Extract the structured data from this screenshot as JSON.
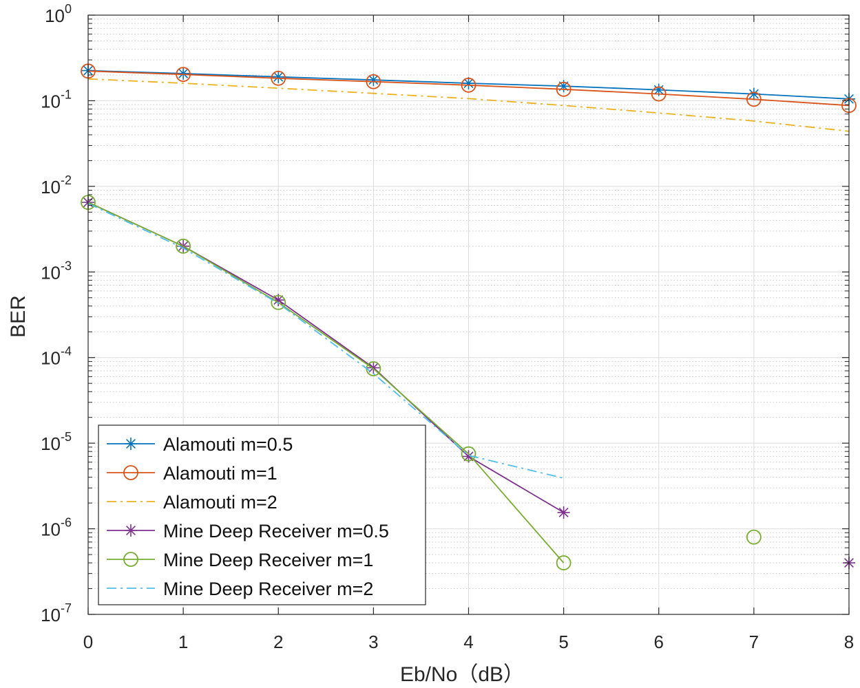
{
  "chart_data": {
    "type": "line",
    "xlabel": "Eb/No（dB）",
    "ylabel": "BER",
    "xlim": [
      0,
      8
    ],
    "ylim": [
      1e-07,
      1
    ],
    "yscale": "log",
    "grid": true,
    "legend_position": "bottom-left",
    "x_ticks": [
      0,
      1,
      2,
      3,
      4,
      5,
      6,
      7,
      8
    ],
    "y_tick_exponents": [
      0,
      -1,
      -2,
      -3,
      -4,
      -5,
      -6,
      -7
    ],
    "series": [
      {
        "name": "Alamouti m=0.5",
        "color": "#0072bd",
        "linestyle": "solid",
        "marker": "asterisk",
        "x": [
          0,
          1,
          2,
          3,
          4,
          5,
          6,
          7,
          8
        ],
        "y": [
          0.225,
          0.208,
          0.19,
          0.175,
          0.16,
          0.148,
          0.134,
          0.12,
          0.105
        ]
      },
      {
        "name": "Alamouti m=1",
        "color": "#d95319",
        "linestyle": "solid",
        "marker": "circle",
        "x": [
          0,
          1,
          2,
          3,
          4,
          5,
          6,
          7,
          8
        ],
        "y": [
          0.222,
          0.203,
          0.183,
          0.167,
          0.152,
          0.136,
          0.12,
          0.104,
          0.088
        ]
      },
      {
        "name": "Alamouti m=2",
        "color": "#edb120",
        "linestyle": "dashdot",
        "marker": "none",
        "x": [
          0,
          1,
          2,
          3,
          4,
          5,
          6,
          7,
          8
        ],
        "y": [
          0.18,
          0.16,
          0.14,
          0.122,
          0.106,
          0.088,
          0.072,
          0.058,
          0.044
        ]
      },
      {
        "name": "Mine Deep Receiver m=0.5",
        "color": "#7e2f8e",
        "linestyle": "solid",
        "marker": "asterisk",
        "x": [
          0,
          1,
          2,
          3,
          4,
          5,
          8
        ],
        "y": [
          0.0065,
          0.002,
          0.00047,
          7.6e-05,
          7e-06,
          1.55e-06,
          4e-07
        ],
        "line_points": 6
      },
      {
        "name": "Mine Deep Receiver m=1",
        "color": "#77ac30",
        "linestyle": "solid",
        "marker": "circle",
        "x": [
          0,
          1,
          2,
          3,
          4,
          5,
          7
        ],
        "y": [
          0.0065,
          0.002,
          0.00044,
          7.4e-05,
          7.5e-06,
          4e-07,
          8e-07
        ],
        "line_points": 6
      },
      {
        "name": "Mine Deep Receiver m=2",
        "color": "#4dbeee",
        "linestyle": "dashdot",
        "marker": "none",
        "x": [
          0,
          1,
          2,
          3,
          4,
          5
        ],
        "y": [
          0.0063,
          0.0019,
          0.00043,
          6.5e-05,
          7.2e-06,
          3.9e-06
        ],
        "line_points": 6
      }
    ]
  }
}
